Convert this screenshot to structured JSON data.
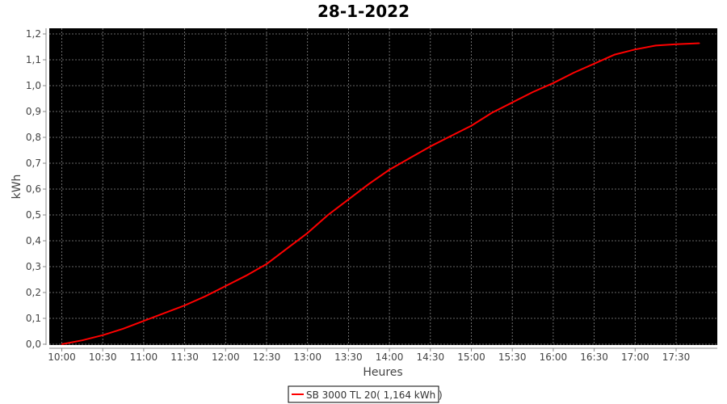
{
  "chart_data": {
    "type": "line",
    "title": "28-1-2022",
    "xlabel": "Heures",
    "ylabel": "kWh",
    "ylim": [
      0,
      1.2
    ],
    "xlim": [
      "09:53",
      "18:00"
    ],
    "grid": true,
    "legend_placement": "bottom",
    "background": "#000000",
    "yticks": [
      "0,0",
      "0,1",
      "0,2",
      "0,3",
      "0,4",
      "0,5",
      "0,6",
      "0,7",
      "0,8",
      "0,9",
      "1,0",
      "1,1",
      "1,2"
    ],
    "xticks": [
      "10:00",
      "10:30",
      "11:00",
      "11:30",
      "12:00",
      "12:30",
      "13:00",
      "13:30",
      "14:00",
      "14:30",
      "15:00",
      "15:30",
      "16:00",
      "16:30",
      "17:00",
      "17:30"
    ],
    "series": [
      {
        "name": "SB 3000 TL 20( 1,164 kWh )",
        "color": "#ff0000",
        "x": [
          "10:00",
          "10:15",
          "10:30",
          "10:45",
          "11:00",
          "11:15",
          "11:30",
          "11:45",
          "12:00",
          "12:15",
          "12:30",
          "12:45",
          "13:00",
          "13:15",
          "13:30",
          "13:45",
          "14:00",
          "14:15",
          "14:30",
          "14:45",
          "15:00",
          "15:15",
          "15:30",
          "15:45",
          "16:00",
          "16:15",
          "16:30",
          "16:45",
          "17:00",
          "17:15",
          "17:30",
          "17:47"
        ],
        "y": [
          0.0,
          0.015,
          0.035,
          0.06,
          0.09,
          0.12,
          0.15,
          0.185,
          0.225,
          0.265,
          0.31,
          0.37,
          0.43,
          0.5,
          0.56,
          0.62,
          0.675,
          0.72,
          0.765,
          0.805,
          0.845,
          0.895,
          0.935,
          0.975,
          1.01,
          1.05,
          1.085,
          1.12,
          1.14,
          1.155,
          1.16,
          1.164
        ]
      }
    ]
  }
}
